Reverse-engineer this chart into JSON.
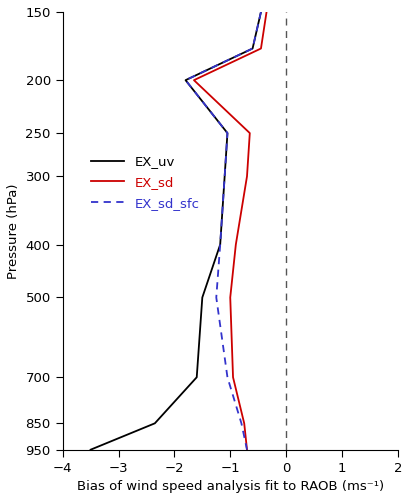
{
  "title": "",
  "xlabel": "Bias of wind speed analysis fit to RAOB (ms⁻¹)",
  "ylabel": "Pressure (hPa)",
  "xlim": [
    -4,
    2
  ],
  "xticks": [
    -4,
    -3,
    -2,
    -1,
    0,
    1,
    2
  ],
  "pressure_levels": [
    150,
    175,
    200,
    250,
    300,
    400,
    500,
    700,
    850,
    950
  ],
  "EX_uv": [
    -0.45,
    -0.6,
    -1.8,
    -1.05,
    -1.1,
    -1.18,
    -1.5,
    -1.6,
    -2.35,
    -3.5
  ],
  "EX_sd": [
    -0.35,
    -0.45,
    -1.65,
    -0.65,
    -0.7,
    -0.9,
    -1.0,
    -0.95,
    -0.75,
    -0.7
  ],
  "EX_sd_sfc": [
    -0.45,
    -0.6,
    -1.8,
    -1.05,
    -1.1,
    -1.18,
    -1.25,
    -1.05,
    -0.8,
    -0.7
  ],
  "zero_line_x": 0,
  "colors": {
    "EX_uv": "#000000",
    "EX_sd": "#cc0000",
    "EX_sd_sfc": "#3333cc"
  },
  "vline_color": "#555555",
  "bg_color": "#ffffff",
  "legend_labels": [
    "EX_uv",
    "EX_sd",
    "EX_sd_sfc"
  ],
  "yticks": [
    150,
    200,
    250,
    300,
    400,
    500,
    700,
    850,
    950
  ],
  "legend_text_colors": [
    "#000000",
    "#cc0000",
    "#3333cc"
  ]
}
